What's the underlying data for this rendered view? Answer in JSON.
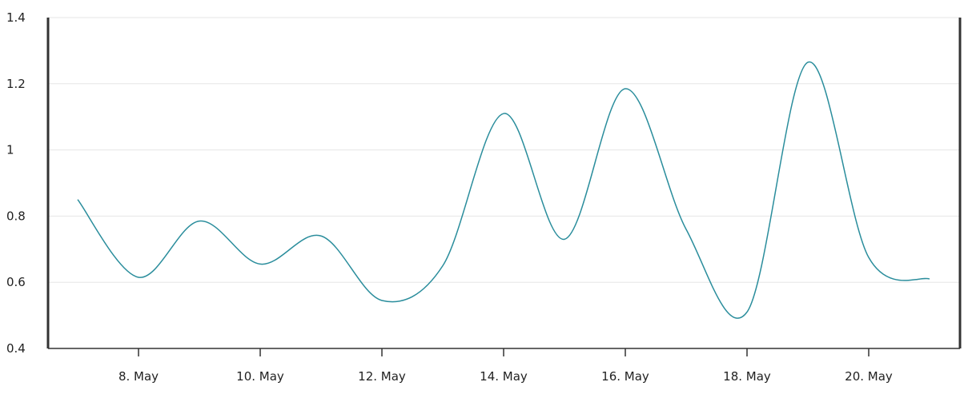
{
  "chart_data": {
    "type": "line",
    "x": [
      "7. May",
      "8. May",
      "9. May",
      "10. May",
      "11. May",
      "12. May",
      "13. May",
      "14. May",
      "15. May",
      "16. May",
      "17. May",
      "18. May",
      "19. May",
      "20. May",
      "21. May"
    ],
    "xticks": [
      "8. May",
      "10. May",
      "12. May",
      "14. May",
      "16. May",
      "18. May",
      "20. May"
    ],
    "series": [
      {
        "values": [
          0.85,
          0.615,
          0.785,
          0.655,
          0.74,
          0.545,
          0.65,
          1.11,
          0.73,
          1.185,
          0.76,
          0.51,
          1.265,
          0.675,
          0.61
        ]
      }
    ],
    "yticks": [
      "0.4",
      "0.6",
      "0.8",
      "1",
      "1.2",
      "1.4"
    ],
    "ylim": [
      0.4,
      1.4
    ],
    "grid": true,
    "title": "",
    "xlabel": "",
    "ylabel": "",
    "colors": {
      "line": "#2a8d9c",
      "axis": "#333333",
      "grid": "#e6e6e6"
    }
  }
}
